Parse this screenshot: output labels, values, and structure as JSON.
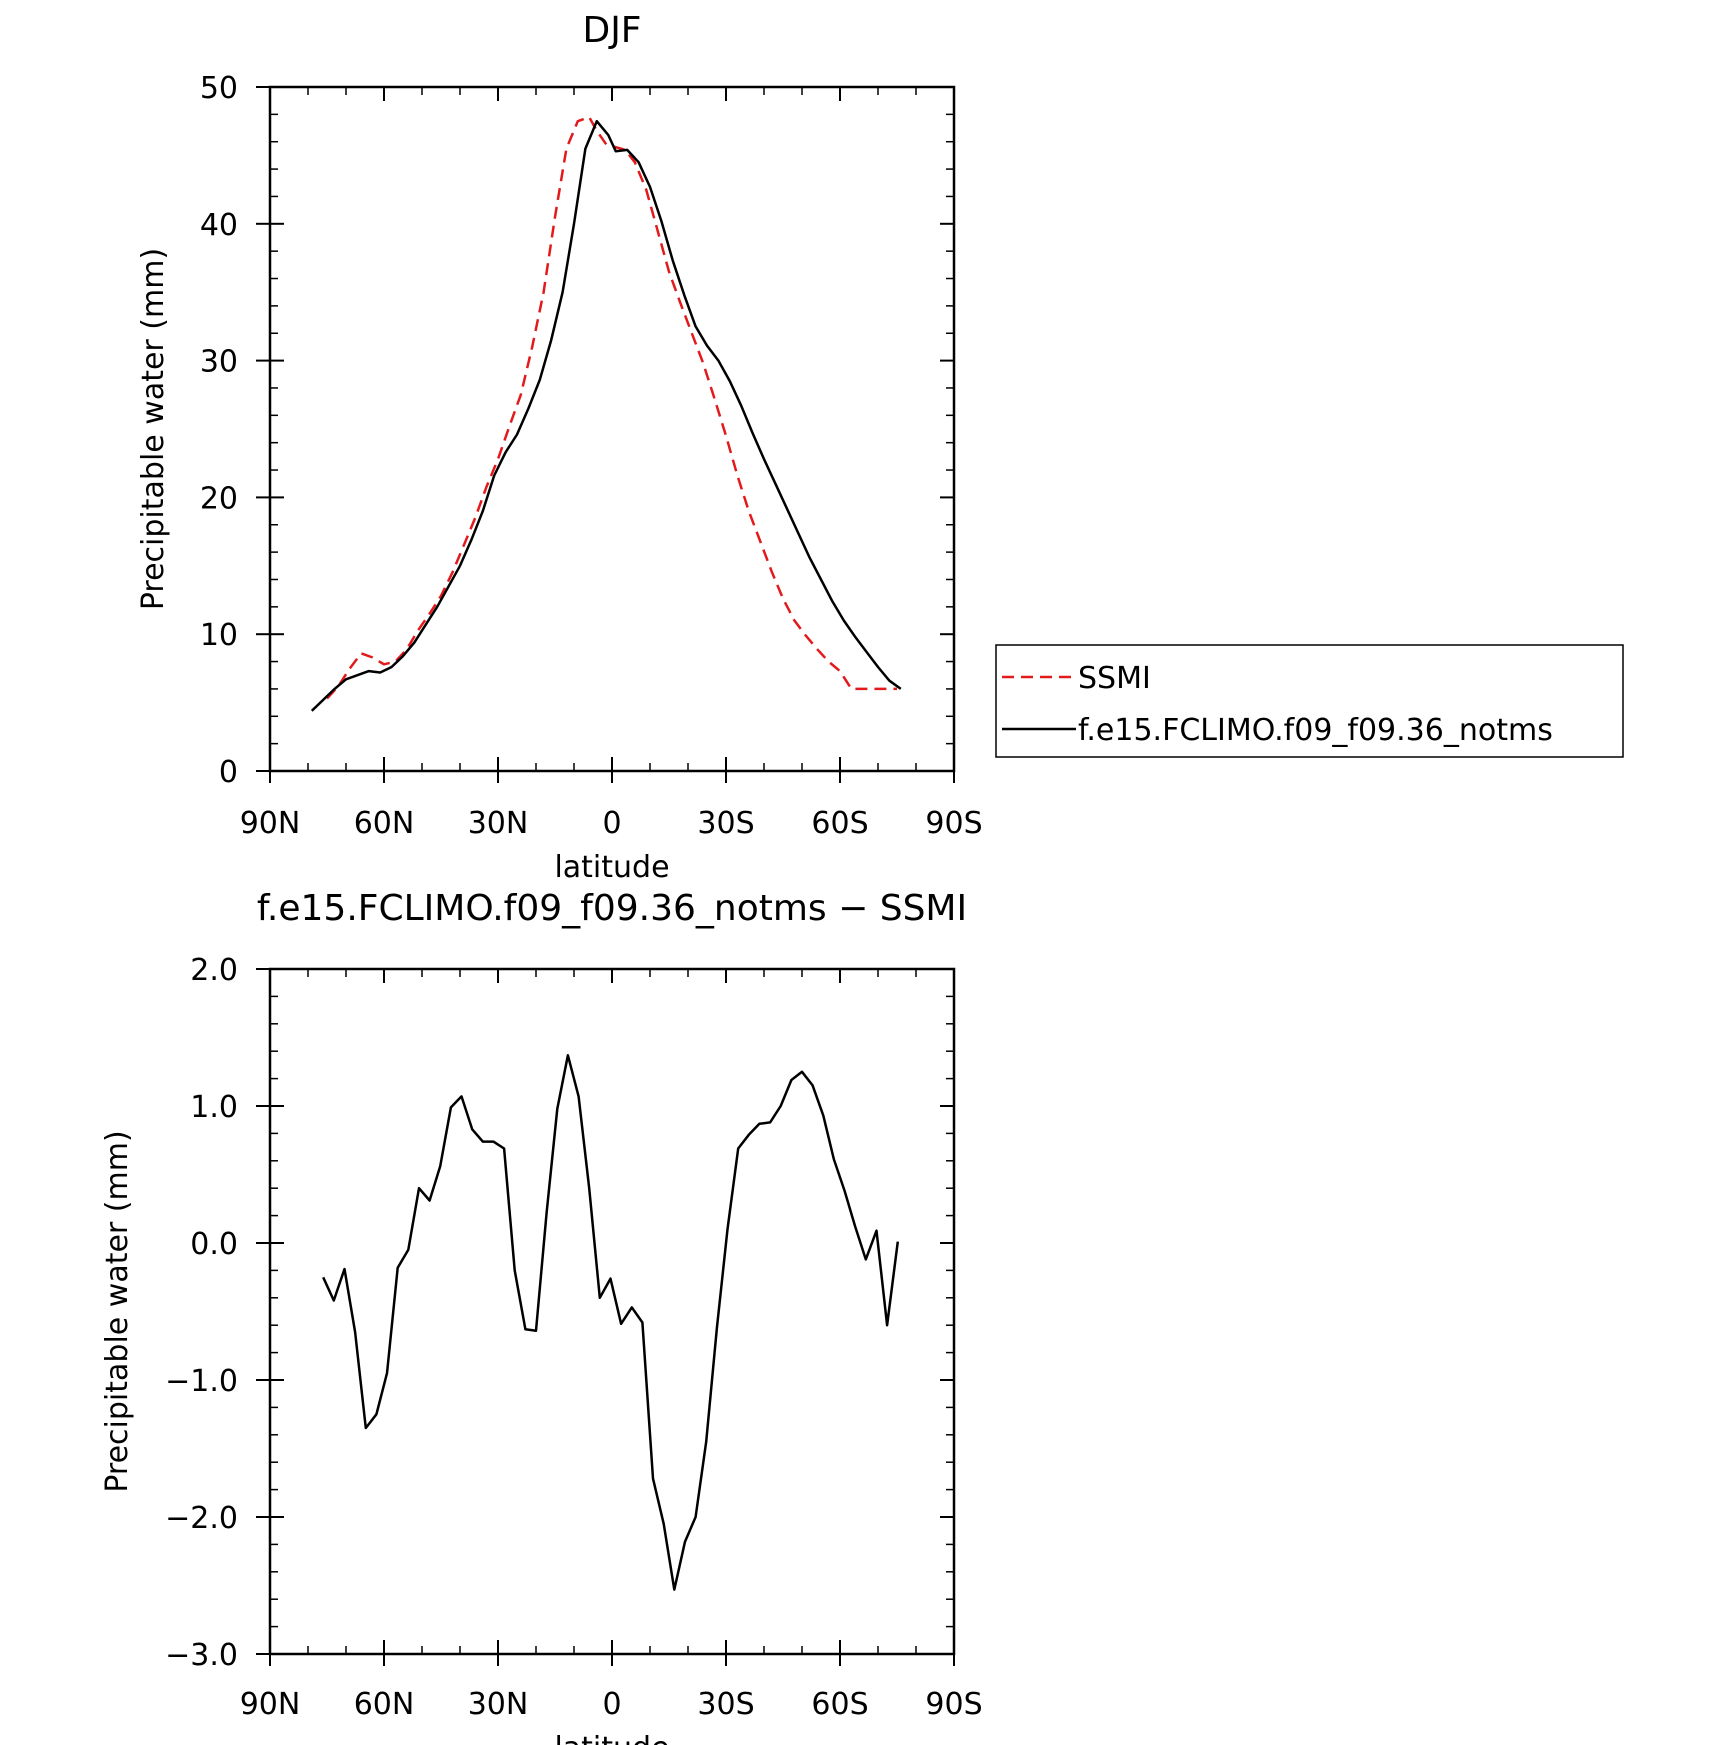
{
  "chart_data": [
    {
      "type": "line",
      "title": "DJF",
      "xlabel": "latitude",
      "ylabel": "Precipitable water (mm)",
      "xlim": [
        -90,
        90
      ],
      "ylim": [
        0,
        50
      ],
      "x_ticks": [
        -90,
        -60,
        -30,
        0,
        30,
        60,
        90
      ],
      "x_tick_labels": [
        "90N",
        "60N",
        "30N",
        "0",
        "30S",
        "60S",
        "90S"
      ],
      "y_ticks": [
        0,
        10,
        20,
        30,
        40,
        50
      ],
      "y_tick_labels": [
        "0",
        "10",
        "20",
        "30",
        "40",
        "50"
      ],
      "grid": false,
      "legend_position": "right",
      "series": [
        {
          "name": "SSMI",
          "color": "#e31a1c",
          "dash": "dashed",
          "x": [
            -75,
            -72,
            -69,
            -66,
            -63,
            -60,
            -57,
            -54,
            -51,
            -48,
            -45,
            -42,
            -39,
            -36,
            -33,
            -30,
            -27,
            -24,
            -21,
            -18,
            -15,
            -12,
            -9,
            -6,
            -4,
            -1.5,
            1,
            3.5,
            6,
            9,
            12,
            15,
            18,
            21,
            24,
            27,
            30,
            33,
            36,
            39,
            42,
            45,
            48,
            51,
            54,
            57,
            60,
            63,
            66,
            69,
            72,
            75
          ],
          "y": [
            5.3,
            6.2,
            7.5,
            8.6,
            8.3,
            7.8,
            8.0,
            8.9,
            10.3,
            11.5,
            12.8,
            14.5,
            16.5,
            18.5,
            20.8,
            22.8,
            25.2,
            27.5,
            31.0,
            35.0,
            40.5,
            45.5,
            47.5,
            47.8,
            46.8,
            45.8,
            45.6,
            45.4,
            44.5,
            42.5,
            39.5,
            36.5,
            34.2,
            32.0,
            29.8,
            27.2,
            24.5,
            21.6,
            19.0,
            16.8,
            14.6,
            12.6,
            11.0,
            9.9,
            8.9,
            8.0,
            7.3,
            6.0,
            6.0,
            6.0,
            6.0,
            6.0
          ]
        },
        {
          "name": "f.e15.FCLIMO.f09_f09.36_notms",
          "color": "#000000",
          "dash": "solid",
          "x": [
            -79,
            -76,
            -73,
            -70,
            -67,
            -64,
            -61,
            -58,
            -55,
            -52,
            -49,
            -46,
            -43,
            -40,
            -37,
            -34,
            -31,
            -28,
            -25,
            -22,
            -19,
            -16,
            -13,
            -10,
            -7,
            -4,
            -1,
            1,
            4,
            7,
            10,
            13,
            16,
            19,
            22,
            25,
            28,
            31,
            34,
            37,
            40,
            43,
            46,
            49,
            52,
            55,
            58,
            61,
            64,
            67,
            70,
            73,
            76
          ],
          "y": [
            4.4,
            5.2,
            6.0,
            6.7,
            7.0,
            7.3,
            7.2,
            7.6,
            8.4,
            9.4,
            10.7,
            12.0,
            13.5,
            15.0,
            16.9,
            19.0,
            21.6,
            23.3,
            24.6,
            26.5,
            28.6,
            31.5,
            35.0,
            40.0,
            45.5,
            47.5,
            46.5,
            45.3,
            45.4,
            44.5,
            42.7,
            40.2,
            37.3,
            34.8,
            32.5,
            31.1,
            30.0,
            28.5,
            26.7,
            24.7,
            22.8,
            21.0,
            19.2,
            17.4,
            15.6,
            14.0,
            12.4,
            11.0,
            9.8,
            8.7,
            7.6,
            6.6,
            6.0
          ]
        }
      ]
    },
    {
      "type": "line",
      "title": "f.e15.FCLIMO.f09_f09.36_notms − SSMI",
      "xlabel": "latitude",
      "ylabel": "Precipitable water (mm)",
      "xlim": [
        -90,
        90
      ],
      "ylim": [
        -3.0,
        2.0
      ],
      "x_ticks": [
        -90,
        -60,
        -30,
        0,
        30,
        60,
        90
      ],
      "x_tick_labels": [
        "90N",
        "60N",
        "30N",
        "0",
        "30S",
        "60S",
        "90S"
      ],
      "y_ticks": [
        2.0,
        1.0,
        0.0,
        -1.0,
        -2.0,
        -3.0
      ],
      "y_tick_labels": [
        "2.0",
        "1.0",
        "0.0",
        "−1.0",
        "−2.0",
        "−3.0"
      ],
      "grid": false,
      "series": [
        {
          "color": "#000000",
          "dash": "solid",
          "x": [
            -76,
            -73.2,
            -70.4,
            -67.6,
            -64.8,
            -62,
            -59.2,
            -56.4,
            -53.6,
            -50.8,
            -48,
            -45.2,
            -42.4,
            -39.6,
            -36.8,
            -34,
            -31.2,
            -28.4,
            -25.6,
            -22.8,
            -20,
            -17.2,
            -14.4,
            -11.6,
            -8.8,
            -6,
            -3.2,
            -0.4,
            2.4,
            5.2,
            8,
            10.8,
            13.6,
            16.4,
            19.2,
            22,
            24.8,
            27.6,
            30.4,
            33.2,
            36,
            38.8,
            41.6,
            44.4,
            47.2,
            50,
            52.8,
            55.6,
            58.4,
            61.2,
            64,
            66.8,
            69.6,
            72.4,
            75.2
          ],
          "y": [
            -0.25,
            -0.42,
            -0.19,
            -0.65,
            -1.35,
            -1.25,
            -0.95,
            -0.18,
            -0.05,
            0.4,
            0.31,
            0.56,
            0.99,
            1.07,
            0.83,
            0.74,
            0.74,
            0.69,
            -0.2,
            -0.63,
            -0.64,
            0.22,
            0.98,
            1.37,
            1.07,
            0.4,
            -0.4,
            -0.26,
            -0.59,
            -0.47,
            -0.58,
            -1.72,
            -2.05,
            -2.53,
            -2.18,
            -2.0,
            -1.45,
            -0.62,
            0.1,
            0.69,
            0.79,
            0.87,
            0.88,
            1.0,
            1.19,
            1.25,
            1.15,
            0.93,
            0.61,
            0.38,
            0.12,
            -0.12,
            0.09,
            -0.6,
            0.01
          ]
        }
      ]
    }
  ]
}
